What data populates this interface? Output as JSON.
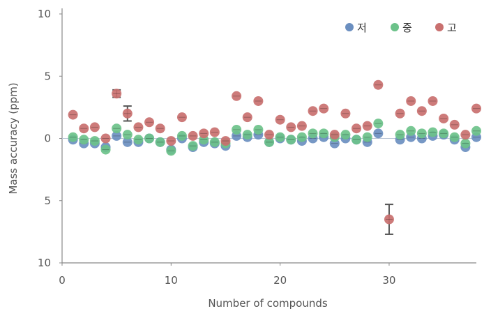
{
  "chart_data": {
    "type": "scatter",
    "title": "",
    "xlabel": "Number of compounds",
    "ylabel": "Mass accuracy (ppm)",
    "xlim": [
      0,
      38
    ],
    "ylim": [
      -10,
      10
    ],
    "x_ticks": [
      0,
      10,
      20,
      30
    ],
    "x_tick_labels": [
      "0",
      "10",
      "20",
      "30"
    ],
    "y_ticks": [
      10,
      5,
      0,
      -5,
      -10
    ],
    "y_tick_labels": [
      "10",
      "5",
      "0",
      "5",
      "10"
    ],
    "zero_line": true,
    "grid": false,
    "legend_position": "top-right",
    "series": [
      {
        "name": "저",
        "color": "#6b8fc0",
        "x": [
          1,
          2,
          3,
          4,
          5,
          6,
          7,
          8,
          9,
          10,
          11,
          12,
          13,
          14,
          15,
          16,
          17,
          18,
          19,
          20,
          21,
          22,
          23,
          24,
          25,
          26,
          27,
          28,
          29,
          31,
          32,
          33,
          34,
          35,
          36,
          37,
          38
        ],
        "y": [
          -0.1,
          -0.4,
          -0.4,
          -0.7,
          0.2,
          -0.3,
          -0.3,
          0.0,
          -0.3,
          -0.9,
          0.0,
          -0.7,
          -0.3,
          -0.4,
          -0.6,
          0.2,
          0.1,
          0.3,
          -0.3,
          0.0,
          -0.1,
          -0.2,
          0.0,
          0.1,
          -0.4,
          0.0,
          -0.1,
          -0.3,
          0.4,
          -0.1,
          0.1,
          0.0,
          0.2,
          0.3,
          -0.1,
          -0.7,
          0.1
        ]
      },
      {
        "name": "중",
        "color": "#6cc28a",
        "x": [
          1,
          2,
          3,
          4,
          5,
          6,
          7,
          8,
          9,
          10,
          11,
          12,
          13,
          14,
          15,
          16,
          17,
          18,
          19,
          20,
          21,
          22,
          23,
          24,
          25,
          26,
          27,
          28,
          29,
          31,
          32,
          33,
          34,
          35,
          36,
          37,
          38
        ],
        "y": [
          0.1,
          -0.1,
          -0.2,
          -0.9,
          0.8,
          0.3,
          -0.1,
          0.0,
          -0.3,
          -1.0,
          0.2,
          -0.6,
          -0.1,
          -0.3,
          -0.4,
          0.7,
          0.3,
          0.7,
          -0.3,
          0.1,
          -0.1,
          0.1,
          0.4,
          0.4,
          0.1,
          0.3,
          -0.1,
          0.1,
          1.2,
          0.3,
          0.6,
          0.4,
          0.5,
          0.4,
          0.1,
          -0.4,
          0.6
        ]
      },
      {
        "name": "고",
        "color": "#c9706f",
        "x": [
          1,
          2,
          3,
          4,
          5,
          6,
          7,
          8,
          9,
          10,
          11,
          12,
          13,
          14,
          15,
          16,
          17,
          18,
          19,
          20,
          21,
          22,
          23,
          24,
          25,
          26,
          27,
          28,
          29,
          30,
          31,
          32,
          33,
          34,
          35,
          36,
          37,
          38
        ],
        "y": [
          1.9,
          0.8,
          0.9,
          0.0,
          3.6,
          2.0,
          0.9,
          1.3,
          0.8,
          -0.2,
          1.7,
          0.2,
          0.4,
          0.5,
          -0.2,
          3.4,
          1.7,
          3.0,
          0.3,
          1.5,
          0.9,
          1.0,
          2.2,
          2.4,
          0.3,
          2.0,
          0.8,
          1.0,
          4.3,
          -6.5,
          2.0,
          3.0,
          2.2,
          3.0,
          1.6,
          1.1,
          0.3,
          2.4
        ]
      }
    ],
    "error_bars": [
      {
        "series": "고",
        "x": 30,
        "y": -6.5,
        "low": -7.7,
        "high": -5.3
      },
      {
        "series": "고",
        "x": 6,
        "y": 2.0,
        "low": 1.4,
        "high": 2.6
      },
      {
        "series": "고",
        "x": 5,
        "y": 3.6,
        "low": 3.3,
        "high": 3.9
      }
    ]
  }
}
